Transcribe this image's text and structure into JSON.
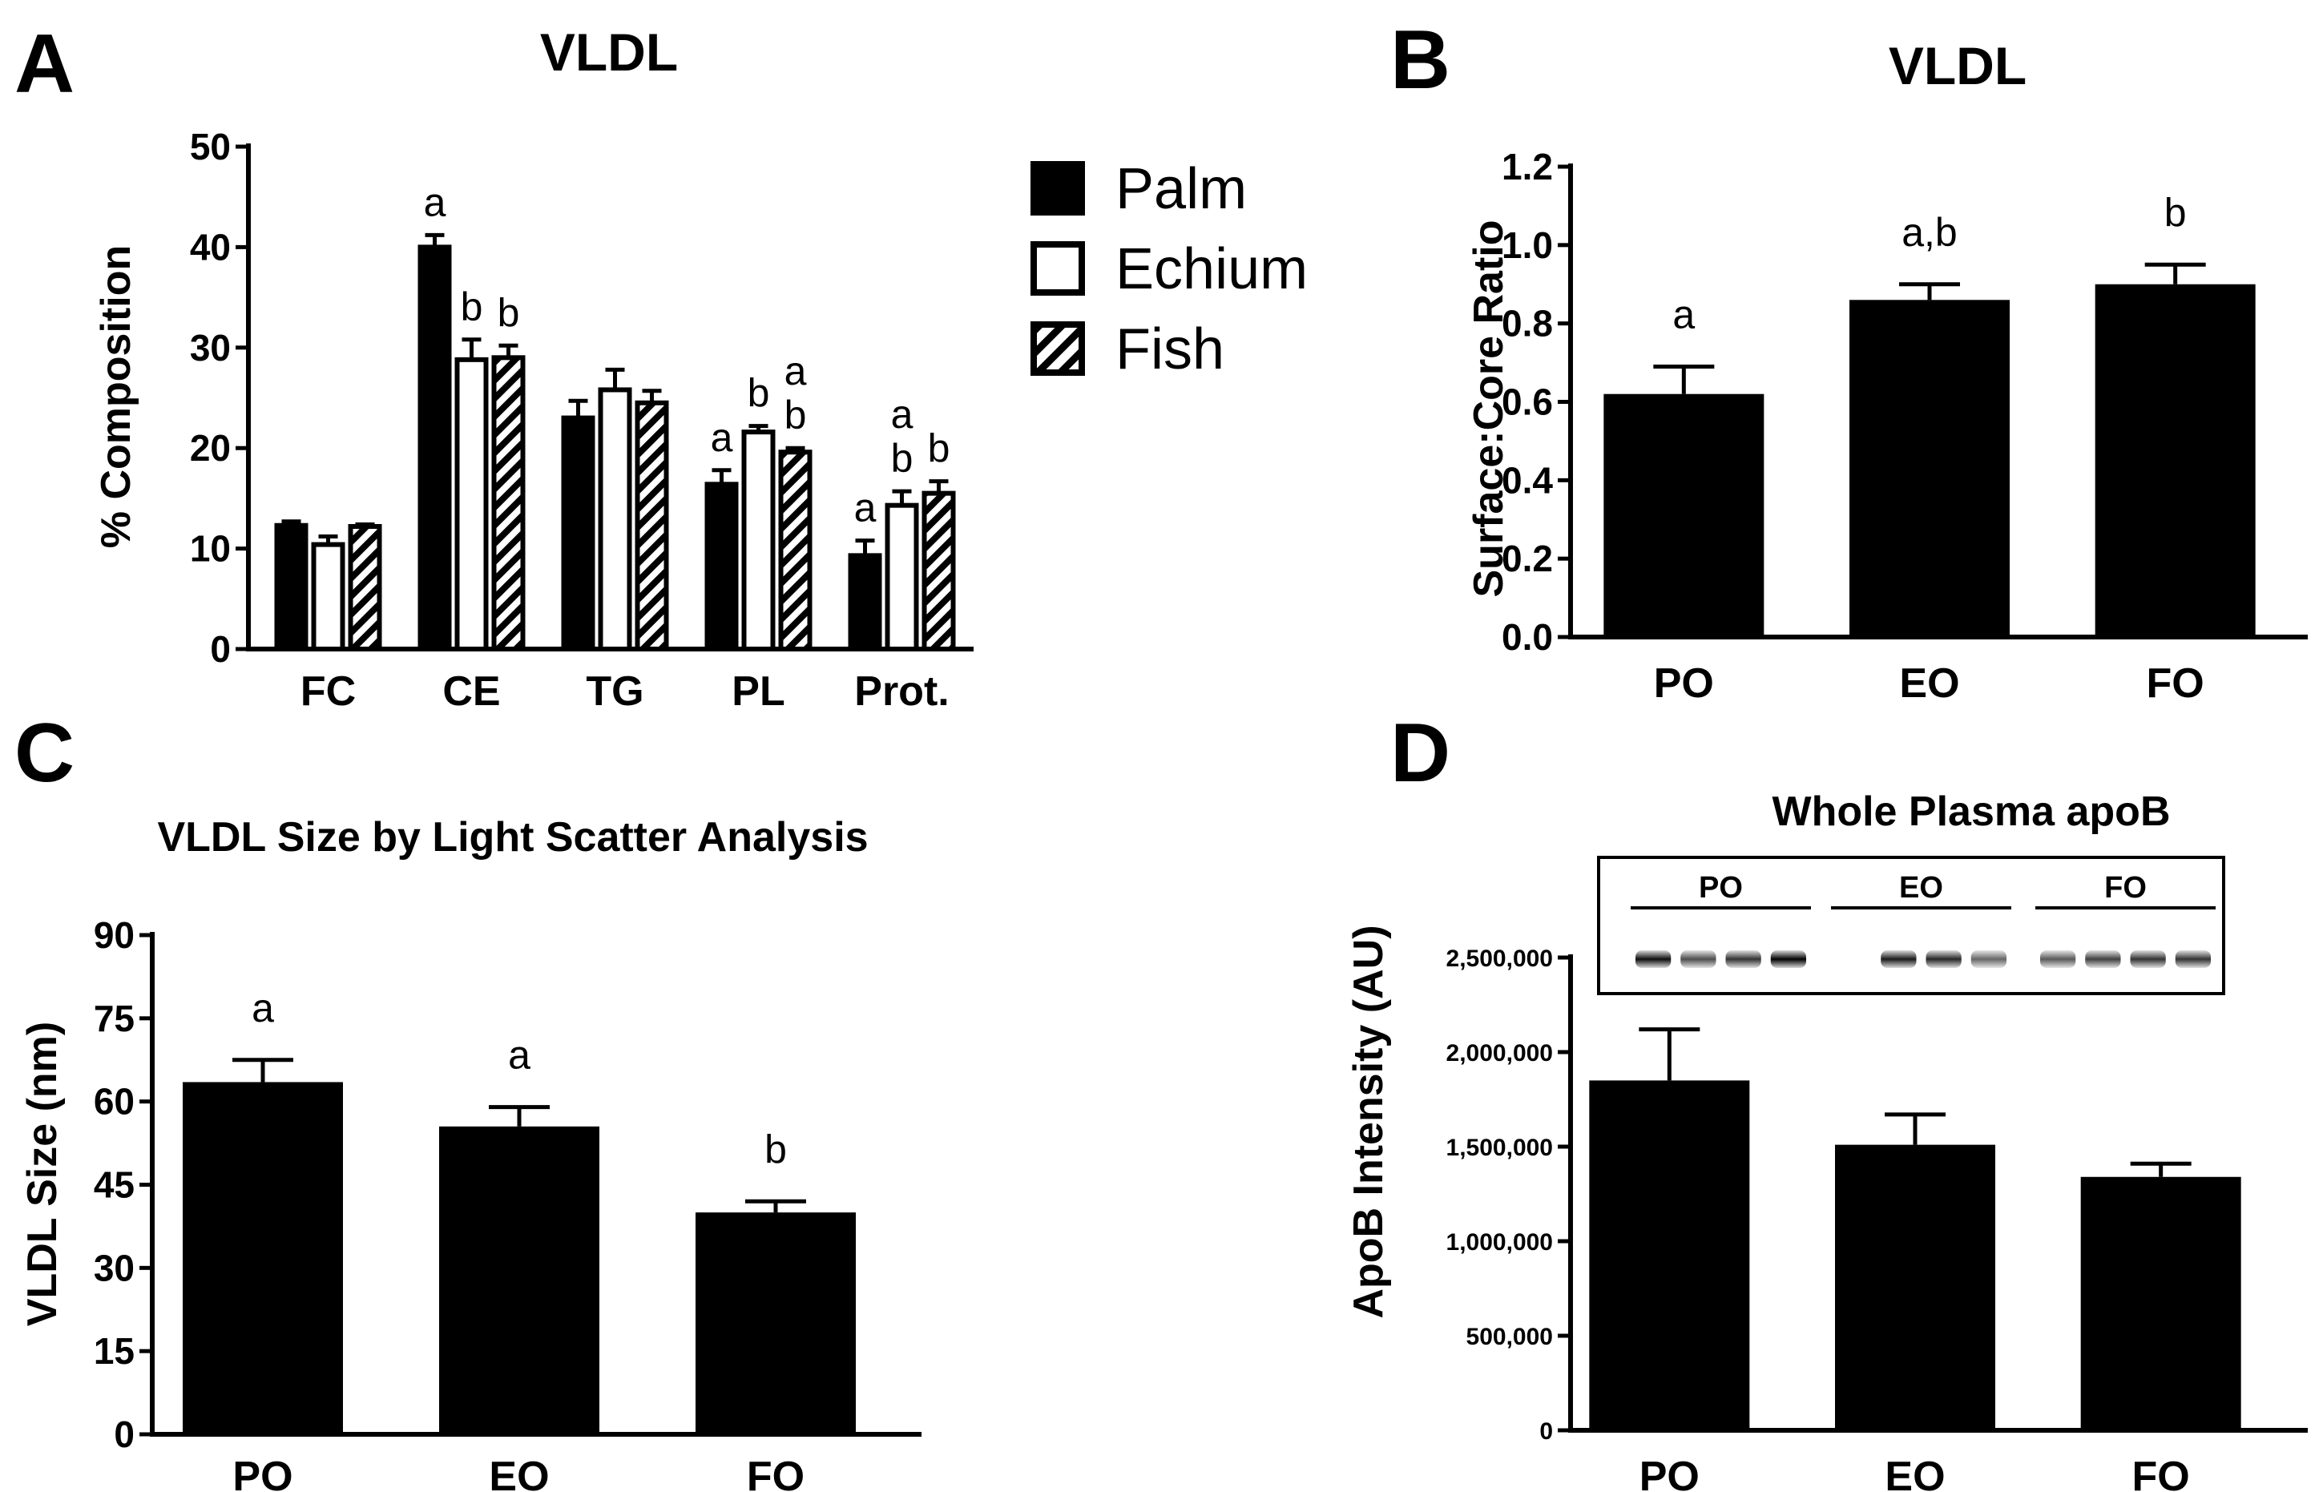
{
  "panels": {
    "A": {
      "letter": "A"
    },
    "B": {
      "letter": "B"
    },
    "C": {
      "letter": "C"
    },
    "D": {
      "letter": "D"
    }
  },
  "chart_data": [
    {
      "id": "A",
      "type": "bar",
      "title": "VLDL",
      "xlabel": "",
      "ylabel": "% Composition",
      "ylim": [
        0,
        50
      ],
      "yticks": [
        "0",
        "10",
        "20",
        "30",
        "40",
        "50"
      ],
      "categories": [
        "FC",
        "CE",
        "TG",
        "PL",
        "Prot."
      ],
      "series": [
        {
          "name": "Palm",
          "fill": "solid",
          "values": [
            12.3,
            40.0,
            23.0,
            16.4,
            9.3
          ],
          "errors": [
            0.4,
            1.2,
            1.7,
            1.4,
            1.5
          ],
          "sig": [
            "",
            "a",
            "",
            "a",
            "a"
          ]
        },
        {
          "name": "Echium",
          "fill": "open",
          "values": [
            10.4,
            28.8,
            25.8,
            21.6,
            14.3
          ],
          "errors": [
            0.8,
            2.0,
            2.0,
            0.6,
            1.4
          ],
          "sig": [
            "",
            "b",
            "",
            "b",
            "a b"
          ]
        },
        {
          "name": "Fish",
          "fill": "hatched",
          "values": [
            12.2,
            29.0,
            24.5,
            19.6,
            15.5
          ],
          "errors": [
            0.2,
            1.2,
            1.2,
            0.4,
            1.2
          ],
          "sig": [
            "",
            "b",
            "",
            "a b",
            "b"
          ]
        }
      ],
      "legend": {
        "position": "right",
        "items": [
          "Palm",
          "Echium",
          "Fish"
        ]
      }
    },
    {
      "id": "B",
      "type": "bar",
      "title": "VLDL",
      "xlabel": "",
      "ylabel": "Surface:Core Ratio",
      "ylim": [
        0,
        1.2
      ],
      "yticks": [
        "0.0",
        "0.2",
        "0.4",
        "0.6",
        "0.8",
        "1.0",
        "1.2"
      ],
      "categories": [
        "PO",
        "EO",
        "FO"
      ],
      "values": [
        0.62,
        0.86,
        0.9
      ],
      "errors": [
        0.07,
        0.04,
        0.05
      ],
      "sig": [
        "a",
        "a,b",
        "b"
      ]
    },
    {
      "id": "C",
      "type": "bar",
      "title": "VLDL Size by Light Scatter Analysis",
      "xlabel": "",
      "ylabel": "VLDL Size (nm)",
      "ylim": [
        0,
        90
      ],
      "yticks": [
        "0",
        "15",
        "30",
        "45",
        "60",
        "75",
        "90"
      ],
      "categories": [
        "PO",
        "EO",
        "FO"
      ],
      "values": [
        63.5,
        55.5,
        40.0
      ],
      "errors": [
        4.0,
        3.5,
        2.0
      ],
      "sig": [
        "a",
        "a",
        "b"
      ]
    },
    {
      "id": "D",
      "type": "bar",
      "title": "Whole Plasma apoB",
      "xlabel": "",
      "ylabel": "ApoB Intensity (AU)",
      "ylim": [
        0,
        2500000
      ],
      "yticks": [
        "0",
        "500,000",
        "1,000,000",
        "1,500,000",
        "2,000,000",
        "2,500,000"
      ],
      "categories": [
        "PO",
        "EO",
        "FO"
      ],
      "values": [
        1850000,
        1510000,
        1340000
      ],
      "errors": [
        270000,
        160000,
        70000
      ],
      "sig": [
        "",
        "",
        ""
      ],
      "blot": {
        "groups": [
          "PO",
          "EO",
          "FO"
        ],
        "band_intensity": [
          [
            0.95,
            0.7,
            0.8,
            1.0
          ],
          [
            0.0,
            0.9,
            0.85,
            0.6
          ],
          [
            0.65,
            0.75,
            0.8,
            0.8
          ]
        ]
      }
    }
  ]
}
